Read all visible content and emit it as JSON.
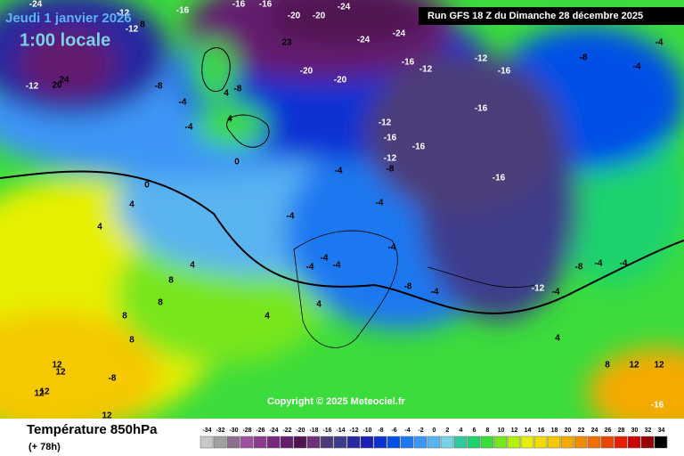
{
  "header": {
    "date": "Jeudi 1 janvier 2026",
    "time": "1:00 locale",
    "run": "Run GFS 18 Z du Dimanche 28 décembre 2025"
  },
  "copyright": "Copyright © 2025 Meteociel.fr",
  "footer": {
    "title": "Température 850hPa",
    "lead": "(+ 78h)"
  },
  "map_labels": [
    -24,
    -12,
    -12,
    8,
    -16,
    -16,
    -16,
    -20,
    -20,
    -24,
    23,
    -24,
    -24,
    -20,
    -20,
    -16,
    -12,
    -12,
    -16,
    -8,
    -4,
    -4,
    -16,
    -12,
    -16,
    -16,
    -12,
    -8,
    -16,
    -4,
    -4,
    -4,
    -8,
    -4,
    -12,
    -4,
    -8,
    -4,
    -4,
    0,
    0,
    4,
    4,
    4,
    8,
    8,
    8,
    8,
    12,
    12,
    -8,
    12,
    12,
    12,
    4,
    4,
    4,
    8,
    12,
    12,
    -16,
    -12,
    20,
    24,
    -8,
    -4,
    -4,
    4,
    -8,
    4,
    -4,
    -4,
    -4,
    -4
  ],
  "colorbar": {
    "values": [
      -34,
      -32,
      -30,
      -28,
      -26,
      -24,
      -22,
      -20,
      -18,
      -16,
      -14,
      -12,
      -10,
      -8,
      -6,
      -4,
      -2,
      0,
      2,
      4,
      6,
      8,
      10,
      12,
      14,
      16,
      18,
      20,
      22,
      24,
      26,
      28,
      30,
      32,
      34
    ],
    "colors": [
      "#c8c8c8",
      "#a0a0a0",
      "#8c6e8c",
      "#a050a0",
      "#8c3c8c",
      "#78287d",
      "#641e6e",
      "#501450",
      "#6e3278",
      "#4b3c78",
      "#3c3c8c",
      "#2828a0",
      "#1e1eb4",
      "#0a32d2",
      "#0050e6",
      "#1e78f0",
      "#3c96f5",
      "#5ab4f0",
      "#78d2e6",
      "#32c8a0",
      "#1ed26e",
      "#3cdc3c",
      "#78e61e",
      "#b4f00a",
      "#e6f000",
      "#f0dc00",
      "#f5c800",
      "#f5aa00",
      "#f08c00",
      "#f06e00",
      "#eb4600",
      "#e61e00",
      "#c80000",
      "#960000",
      "#000000"
    ]
  }
}
